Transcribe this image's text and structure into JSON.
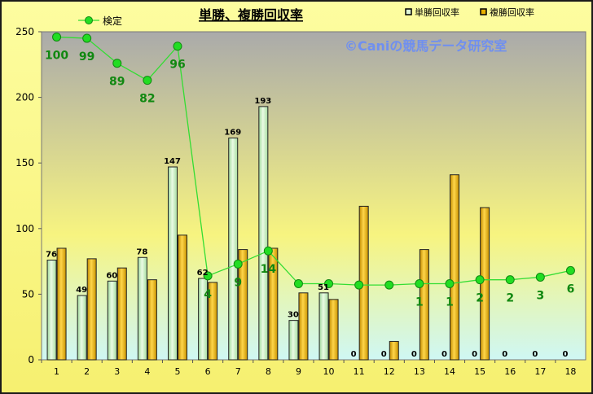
{
  "chart_data": {
    "type": "bar",
    "title": "単勝、複勝回収率",
    "watermark": "©Caniの競馬データ研究室",
    "categories": [
      "1",
      "2",
      "3",
      "4",
      "5",
      "6",
      "7",
      "8",
      "9",
      "10",
      "11",
      "12",
      "13",
      "14",
      "15",
      "16",
      "17",
      "18"
    ],
    "ylim": [
      0,
      250
    ],
    "yticks": [
      0,
      50,
      100,
      150,
      200,
      250
    ],
    "grid": false,
    "legend_position": "top-right",
    "series": [
      {
        "name": "単勝回収率",
        "kind": "bar",
        "color": "#c8f0c0",
        "values": [
          76,
          49,
          60,
          78,
          147,
          62,
          169,
          193,
          30,
          51,
          0,
          0,
          0,
          0,
          0,
          0,
          0,
          0
        ],
        "labels": [
          "76",
          "49",
          "60",
          "78",
          "147",
          "62",
          "169",
          "193",
          "30",
          "51",
          "0",
          "0",
          "0",
          "0",
          "0",
          "0",
          "0",
          "0"
        ]
      },
      {
        "name": "複勝回収率",
        "kind": "bar",
        "color": "#e8b000",
        "values": [
          85,
          77,
          70,
          61,
          95,
          59,
          84,
          85,
          51,
          46,
          117,
          14,
          84,
          141,
          116,
          0,
          0,
          0
        ]
      },
      {
        "name": "検定",
        "kind": "line",
        "color": "#22cc22",
        "values": [
          246,
          245,
          226,
          213,
          239,
          64,
          73,
          83,
          58,
          58,
          57,
          57,
          58,
          58,
          61,
          61,
          63,
          68
        ],
        "labels": [
          "100",
          "99",
          "89",
          "82",
          "96",
          "4",
          "9",
          "14",
          "",
          "",
          "",
          "",
          "1",
          "1",
          "2",
          "2",
          "3",
          "6"
        ]
      }
    ]
  }
}
